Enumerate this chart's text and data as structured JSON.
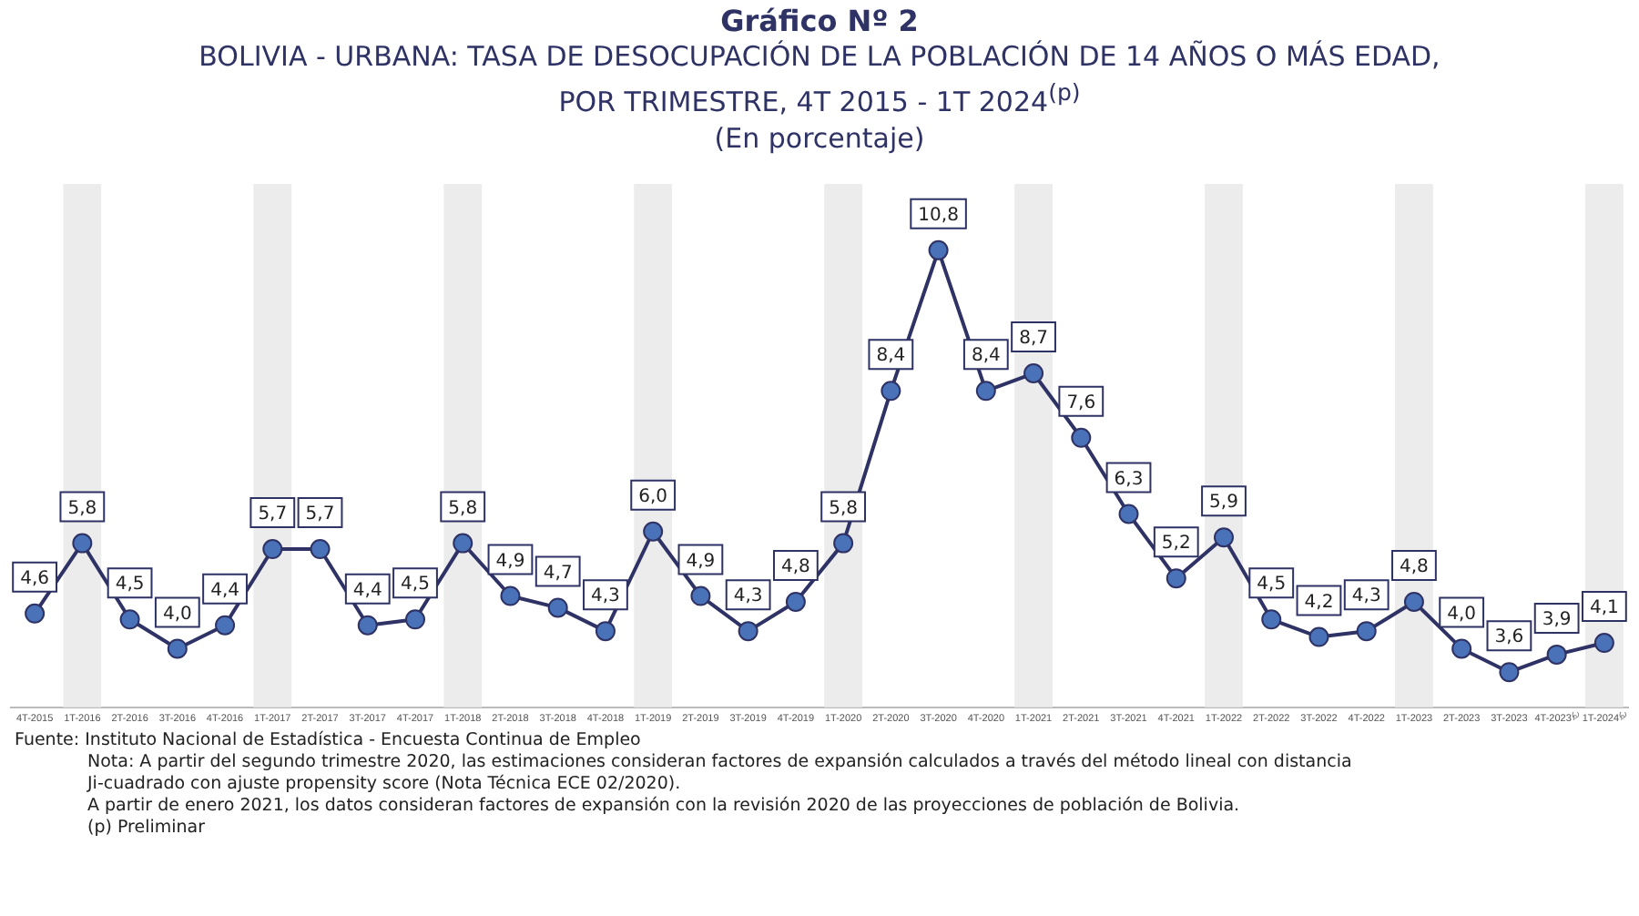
{
  "chart_data": {
    "type": "line",
    "title": "Gráfico Nº 2",
    "subtitle": "BOLIVIA - URBANA: TASA DE DESOCUPACIÓN DE LA POBLACIÓN DE 14 AÑOS O MÁS EDAD,\nPOR TRIMESTRE, 4T 2015 -  1T 2024$^{(p)}$\n(En porcentaje)",
    "categories": [
      "4T-2015",
      "1T-2016",
      "2T-2016",
      "3T-2016",
      "4T-2016",
      "1T-2017",
      "2T-2017",
      "3T-2017",
      "4T-2017",
      "1T-2018",
      "2T-2018",
      "3T-2018",
      "4T-2018",
      "1T-2019",
      "2T-2019",
      "3T-2019",
      "4T-2019",
      "1T-2020",
      "2T-2020",
      "3T-2020",
      "4T-2020",
      "1T-2021",
      "2T-2021",
      "3T-2021",
      "4T-2021",
      "1T-2022",
      "2T-2022",
      "3T-2022",
      "4T-2022",
      "1T-2023",
      "2T-2023",
      "3T-2023",
      "4T-2023⁽ᵖ⁾",
      "1T-2024⁽ᵖ⁾"
    ],
    "series": [
      {
        "color": "#2e3264",
        "values": [
          4.6,
          5.8,
          4.5,
          4.0,
          4.4,
          5.7,
          5.7,
          4.4,
          4.5,
          5.8,
          4.9,
          4.7,
          4.3,
          6.0,
          4.9,
          4.3,
          4.8,
          5.8,
          8.4,
          10.8,
          8.4,
          8.7,
          7.6,
          6.3,
          5.2,
          5.9,
          4.5,
          4.2,
          4.3,
          4.8,
          4.0,
          3.6,
          3.9,
          4.1
        ],
        "value_labels": [
          "4,6",
          "5,8",
          "4,5",
          "4,0",
          "4,4",
          "5,7",
          "5,7",
          "4,4",
          "4,5",
          "5,8",
          "4,9",
          "4,7",
          "4,3",
          "6,0",
          "4,9",
          "4,3",
          "4,8",
          "5,8",
          "8,4",
          "10,8",
          "8,4",
          "8,7",
          "7,6",
          "6,3",
          "5,2",
          "5,9",
          "4,5",
          "4,2",
          "4,3",
          "4,8",
          "4,0",
          "3,6",
          "3,9",
          "4,1"
        ]
      }
    ],
    "marker": "circle",
    "line_style": "solid",
    "grid": false,
    "legend": false,
    "tick_labels": "x",
    "bands": [
      {
        "axis": "x",
        "from": "1T-2016",
        "to": "1T-2016",
        "color": "#ececec"
      },
      {
        "axis": "x",
        "from": "1T-2017",
        "to": "1T-2017",
        "color": "#ececec"
      },
      {
        "axis": "x",
        "from": "1T-2018",
        "to": "1T-2018",
        "color": "#ececec"
      },
      {
        "axis": "x",
        "from": "1T-2019",
        "to": "1T-2019",
        "color": "#ececec"
      },
      {
        "axis": "x",
        "from": "1T-2020",
        "to": "1T-2020",
        "color": "#ececec"
      },
      {
        "axis": "x",
        "from": "1T-2021",
        "to": "1T-2021",
        "color": "#ececec"
      },
      {
        "axis": "x",
        "from": "1T-2022",
        "to": "1T-2022",
        "color": "#ececec"
      },
      {
        "axis": "x",
        "from": "1T-2023",
        "to": "1T-2023",
        "color": "#ececec"
      },
      {
        "axis": "x",
        "from": "1T-2024⁽ᵖ⁾",
        "to": "1T-2024⁽ᵖ⁾",
        "color": "#ececec"
      }
    ],
    "annotations": [
      "Fuente: Instituto Nacional de Estadística - Encuesta Continua de Empleo",
      "Nota: A partir del segundo trimestre 2020, las estimaciones consideran factores de expansión calculados a través del método lineal con distancia Ji-cuadrado con ajuste propensity score (Nota Técnica ECE 02/2020).",
      "A partir de enero 2021, los datos consideran factores de expansión con la revisión 2020 de las proyecciones de población de Bolivia.",
      "(p) Preliminar"
    ]
  }
}
